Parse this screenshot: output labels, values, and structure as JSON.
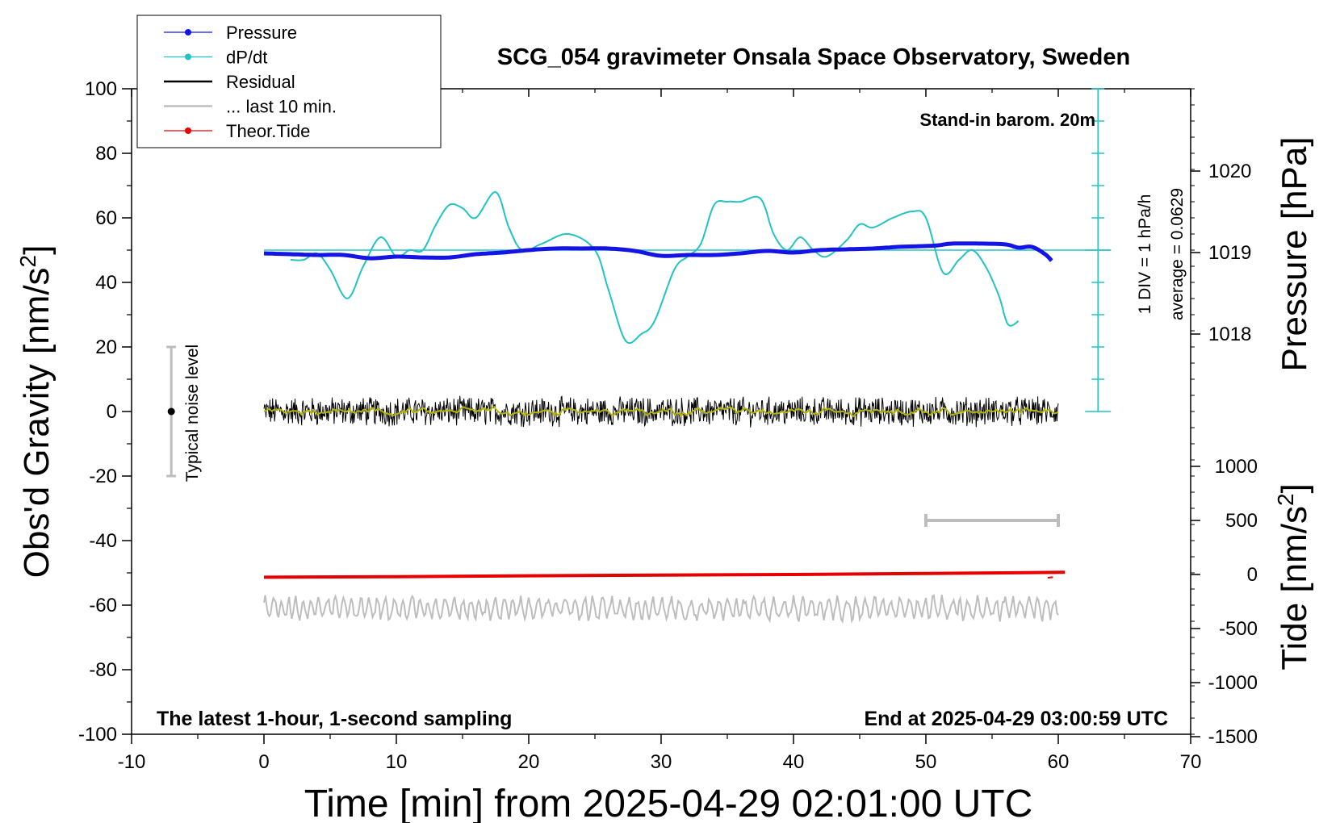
{
  "chart_data": {
    "type": "line",
    "title": "SCG_054 gravimeter Onsala Space Observatory, Sweden",
    "xlabel": "Time [min] from 2025-04-29 02:01:00 UTC",
    "ylabel_left_main": "Obs'd Gravity [nm/s",
    "ylabel_left_sup": "2",
    "ylabel_left_close": "]",
    "ylabel_right_top": "Pressure [hPa]",
    "ylabel_right_bottom_main": "Tide [nm/s",
    "ylabel_right_bottom_sup": "2",
    "ylabel_right_bottom_close": "]",
    "xlim": [
      -10,
      70
    ],
    "ylim_left": [
      -100,
      100
    ],
    "x_ticks": [
      "-10",
      "0",
      "10",
      "20",
      "30",
      "40",
      "50",
      "60",
      "70"
    ],
    "y_ticks_left": [
      "100",
      "80",
      "60",
      "40",
      "20",
      "0",
      "-20",
      "-40",
      "-60",
      "-80",
      "-100"
    ],
    "pressure_axis": {
      "ticks": [
        "1020",
        "1019",
        "1018"
      ],
      "tick_values": [
        1020,
        1019,
        1018
      ]
    },
    "tide_axis": {
      "ticks": [
        "1000",
        "500",
        "0",
        "-500",
        "-1000",
        "-1500"
      ],
      "tick_values": [
        1000,
        500,
        0,
        -500,
        -1000,
        -1500
      ],
      "range": [
        -1500,
        1000
      ]
    },
    "legend": [
      {
        "label": "Pressure",
        "color": "#1414e6",
        "style": "line-dot"
      },
      {
        "label": "dP/dt",
        "color": "#22c3c3",
        "style": "line-dot"
      },
      {
        "label": "Residual",
        "color": "#000000",
        "style": "line"
      },
      {
        "label": "... last 10 min.",
        "color": "#bdbdbd",
        "style": "line"
      },
      {
        "label": "Theor.Tide",
        "color": "#e60000",
        "style": "line-dot"
      }
    ],
    "annotations": {
      "barometer": "Stand-in barom. 20m",
      "sampling": "The latest 1-hour, 1-second sampling",
      "end_time": "End at 2025-04-29 03:00:59 UTC",
      "noise": "Typical noise level",
      "div_scale": "1 DIV = 1 hPa/h",
      "average": "average = 0.0629"
    },
    "noise_bar": {
      "x": -7,
      "center": 0,
      "low": -20,
      "high": 20
    },
    "last10_bar": {
      "x_start": 50,
      "x_end": 60,
      "tide_value": 500
    },
    "dpdt_baseline_gravity": 50,
    "series": [
      {
        "name": "Pressure",
        "color": "#1414e6",
        "unit": "hPa",
        "x": [
          0,
          2,
          4,
          6,
          8,
          10,
          12,
          14,
          16,
          18,
          20,
          22,
          24,
          26,
          28,
          30,
          32,
          34,
          36,
          38,
          40,
          42,
          44,
          46,
          48,
          50,
          51,
          52,
          54,
          56,
          57,
          58,
          59,
          59.5
        ],
        "values": [
          1018.99,
          1018.98,
          1018.97,
          1018.97,
          1018.93,
          1018.95,
          1018.94,
          1018.94,
          1018.98,
          1019.0,
          1019.03,
          1019.05,
          1019.05,
          1019.05,
          1019.02,
          1018.96,
          1018.97,
          1018.97,
          1018.99,
          1019.02,
          1019.0,
          1019.03,
          1019.04,
          1019.05,
          1019.07,
          1019.08,
          1019.09,
          1019.11,
          1019.11,
          1019.1,
          1019.06,
          1019.07,
          1018.98,
          1018.9
        ]
      },
      {
        "name": "dP/dt",
        "color": "#22c3c3",
        "unit": "nm/s2 (plotted)",
        "x": [
          2,
          3,
          4,
          5,
          6.3,
          7.5,
          8.8,
          10,
          11,
          12,
          13,
          14,
          15,
          16,
          17.5,
          18.5,
          19.5,
          21,
          23,
          25,
          26,
          27.3,
          28.5,
          29.5,
          31,
          32,
          33,
          34,
          35,
          36,
          37.5,
          38.5,
          39.5,
          40.5,
          41.5,
          42.5,
          44,
          45,
          46,
          47.5,
          49,
          50,
          51.3,
          52.5,
          53.5,
          54.5,
          55.5,
          56.2,
          57
        ],
        "values": [
          47,
          47,
          49,
          44,
          35,
          45,
          54,
          48,
          50,
          50,
          58,
          64,
          63,
          60,
          68,
          57,
          50,
          52,
          55,
          50,
          38,
          22,
          24,
          28,
          44,
          48,
          52,
          64,
          65,
          65,
          66,
          55,
          50,
          54,
          50,
          48,
          53,
          58,
          57,
          60,
          62,
          60,
          43,
          47,
          50,
          45,
          36,
          27,
          28
        ]
      },
      {
        "name": "Residual",
        "color": "#000000",
        "x_range": [
          0,
          60
        ],
        "center": 0,
        "amplitude": 4,
        "smoothed_overlay_color": "#b4b400"
      },
      {
        "name": "... last 10 min.",
        "color": "#bdbdbd",
        "x_range": [
          0,
          60
        ],
        "center": -61,
        "amplitude": 3
      },
      {
        "name": "Theor.Tide",
        "color": "#e60000",
        "unit": "nm/s2",
        "x": [
          0,
          10,
          20,
          30,
          40,
          50,
          60.5
        ],
        "values": [
          -25,
          -20,
          -12,
          -5,
          0,
          10,
          20
        ]
      }
    ]
  }
}
